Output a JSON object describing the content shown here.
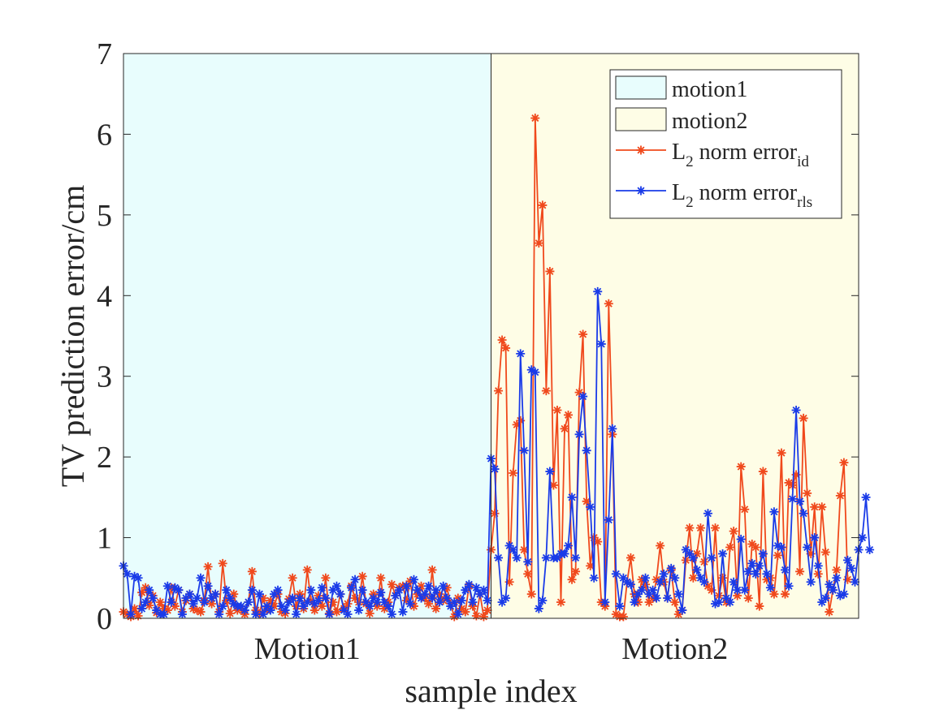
{
  "chart_data": {
    "type": "line",
    "title": "",
    "xlabel": "sample index",
    "ylabel": "TV prediction error/cm",
    "ylim": [
      0,
      7
    ],
    "xlim": [
      0,
      200
    ],
    "yticks": [
      0,
      1,
      2,
      3,
      4,
      5,
      6,
      7
    ],
    "regions": [
      {
        "name": "motion1",
        "label": "Motion1",
        "x_start": 0,
        "x_end": 100,
        "color": "#e8fdfd"
      },
      {
        "name": "motion2",
        "label": "Motion2",
        "x_start": 100,
        "x_end": 200,
        "color": "#fefde6"
      }
    ],
    "legend": {
      "location": "top-right",
      "region_entries": [
        "motion1",
        "motion2"
      ],
      "series_entries": [
        {
          "base": "L",
          "sub": "2",
          "text": " norm error",
          "suffix": "id"
        },
        {
          "base": "L",
          "sub": "2",
          "text": " norm error",
          "suffix": "rls"
        }
      ]
    },
    "series": [
      {
        "name": "L2 norm error_id",
        "color": "#f0491c",
        "x_start": 0,
        "x_step": 1,
        "values": [
          0.08,
          0.05,
          0.02,
          0.12,
          0.03,
          0.32,
          0.38,
          0.16,
          0.28,
          0.07,
          0.2,
          0.12,
          0.1,
          0.38,
          0.15,
          0.35,
          0.08,
          0.22,
          0.3,
          0.12,
          0.1,
          0.08,
          0.22,
          0.64,
          0.18,
          0.3,
          0.08,
          0.68,
          0.22,
          0.06,
          0.3,
          0.1,
          0.12,
          0.05,
          0.2,
          0.58,
          0.1,
          0.06,
          0.25,
          0.1,
          0.22,
          0.15,
          0.3,
          0.08,
          0.06,
          0.24,
          0.5,
          0.15,
          0.3,
          0.12,
          0.6,
          0.22,
          0.1,
          0.28,
          0.15,
          0.5,
          0.06,
          0.2,
          0.08,
          0.3,
          0.12,
          0.18,
          0.4,
          0.25,
          0.2,
          0.52,
          0.18,
          0.06,
          0.3,
          0.15,
          0.5,
          0.12,
          0.2,
          0.42,
          0.28,
          0.38,
          0.4,
          0.22,
          0.46,
          0.15,
          0.3,
          0.4,
          0.25,
          0.18,
          0.6,
          0.12,
          0.3,
          0.22,
          0.38,
          0.18,
          0.02,
          0.25,
          0.12,
          0.08,
          0.4,
          0.15,
          0.03,
          0.3,
          0.02,
          0.1,
          0.85,
          1.3,
          2.82,
          3.45,
          3.35,
          0.45,
          1.8,
          2.4,
          2.45,
          0.85,
          0.55,
          0.3,
          6.2,
          4.65,
          5.12,
          2.82,
          4.3,
          1.65,
          2.58,
          0.2,
          2.35,
          2.52,
          0.48,
          0.58,
          2.8,
          3.52,
          1.45,
          0.65,
          1.0,
          0.95,
          0.2,
          0.15,
          3.9,
          2.28,
          0.05,
          0.02,
          0.02,
          0.45,
          0.75,
          0.3,
          0.2,
          0.48,
          0.42,
          0.2,
          0.25,
          0.48,
          0.9,
          0.45,
          0.25,
          0.6,
          0.2,
          0.05,
          0.1,
          0.72,
          1.12,
          0.5,
          0.8,
          1.12,
          0.7,
          0.4,
          0.35,
          1.12,
          0.28,
          0.5,
          0.2,
          0.88,
          1.08,
          0.28,
          1.88,
          1.35,
          0.25,
          0.92,
          0.88,
          0.15,
          1.82,
          0.48,
          0.5,
          0.3,
          0.78,
          2.05,
          0.3,
          1.68,
          1.65,
          1.78,
          0.58,
          2.48,
          1.55,
          0.8,
          1.38,
          0.55,
          1.38,
          0.82,
          0.08,
          0.35,
          0.6,
          1.52,
          1.93,
          0.48
        ]
      },
      {
        "name": "L2 norm error_rls",
        "color": "#1a3be8",
        "x_start": 0,
        "x_step": 1,
        "values": [
          0.65,
          0.55,
          0.05,
          0.52,
          0.5,
          0.12,
          0.2,
          0.35,
          0.25,
          0.1,
          0.05,
          0.05,
          0.4,
          0.2,
          0.38,
          0.35,
          0.05,
          0.25,
          0.3,
          0.18,
          0.25,
          0.5,
          0.2,
          0.4,
          0.25,
          0.3,
          0.05,
          0.15,
          0.35,
          0.25,
          0.18,
          0.15,
          0.15,
          0.1,
          0.2,
          0.35,
          0.05,
          0.3,
          0.05,
          0.15,
          0.1,
          0.3,
          0.35,
          0.15,
          0.1,
          0.2,
          0.25,
          0.05,
          0.25,
          0.15,
          0.2,
          0.35,
          0.18,
          0.22,
          0.38,
          0.25,
          0.05,
          0.35,
          0.4,
          0.3,
          0.1,
          0.05,
          0.38,
          0.48,
          0.1,
          0.35,
          0.2,
          0.15,
          0.25,
          0.2,
          0.32,
          0.2,
          0.15,
          0.05,
          0.28,
          0.35,
          0.08,
          0.4,
          0.18,
          0.48,
          0.35,
          0.25,
          0.3,
          0.4,
          0.25,
          0.35,
          0.2,
          0.4,
          0.25,
          0.15,
          0.2,
          0.05,
          0.22,
          0.35,
          0.42,
          0.2,
          0.38,
          0.3,
          0.35,
          0.22,
          1.98,
          1.85,
          0.75,
          0.2,
          0.25,
          0.9,
          0.85,
          0.75,
          3.28,
          2.08,
          0.7,
          3.08,
          3.05,
          0.12,
          0.22,
          0.75,
          1.82,
          0.75,
          0.75,
          0.8,
          0.8,
          0.9,
          1.5,
          0.75,
          2.28,
          2.75,
          2.08,
          1.38,
          0.5,
          4.05,
          3.4,
          0.2,
          1.22,
          2.35,
          0.55,
          0.15,
          0.5,
          0.45,
          0.42,
          0.2,
          0.3,
          0.35,
          0.5,
          0.3,
          0.35,
          0.25,
          0.45,
          0.55,
          0.25,
          0.62,
          0.5,
          0.3,
          0.1,
          0.85,
          0.8,
          0.75,
          0.6,
          0.5,
          0.45,
          1.3,
          0.75,
          0.18,
          0.2,
          0.8,
          0.25,
          0.2,
          0.45,
          0.35,
          0.98,
          0.35,
          0.58,
          0.68,
          0.55,
          0.65,
          0.8,
          0.55,
          0.38,
          1.32,
          0.9,
          0.88,
          0.6,
          0.4,
          1.48,
          2.58,
          1.45,
          1.3,
          0.88,
          0.45,
          1.0,
          0.65,
          0.2,
          0.25,
          0.42,
          0.35,
          0.5,
          0.28,
          0.3,
          0.72,
          0.62,
          0.45,
          0.85,
          1.0,
          1.5,
          0.85
        ]
      }
    ]
  }
}
